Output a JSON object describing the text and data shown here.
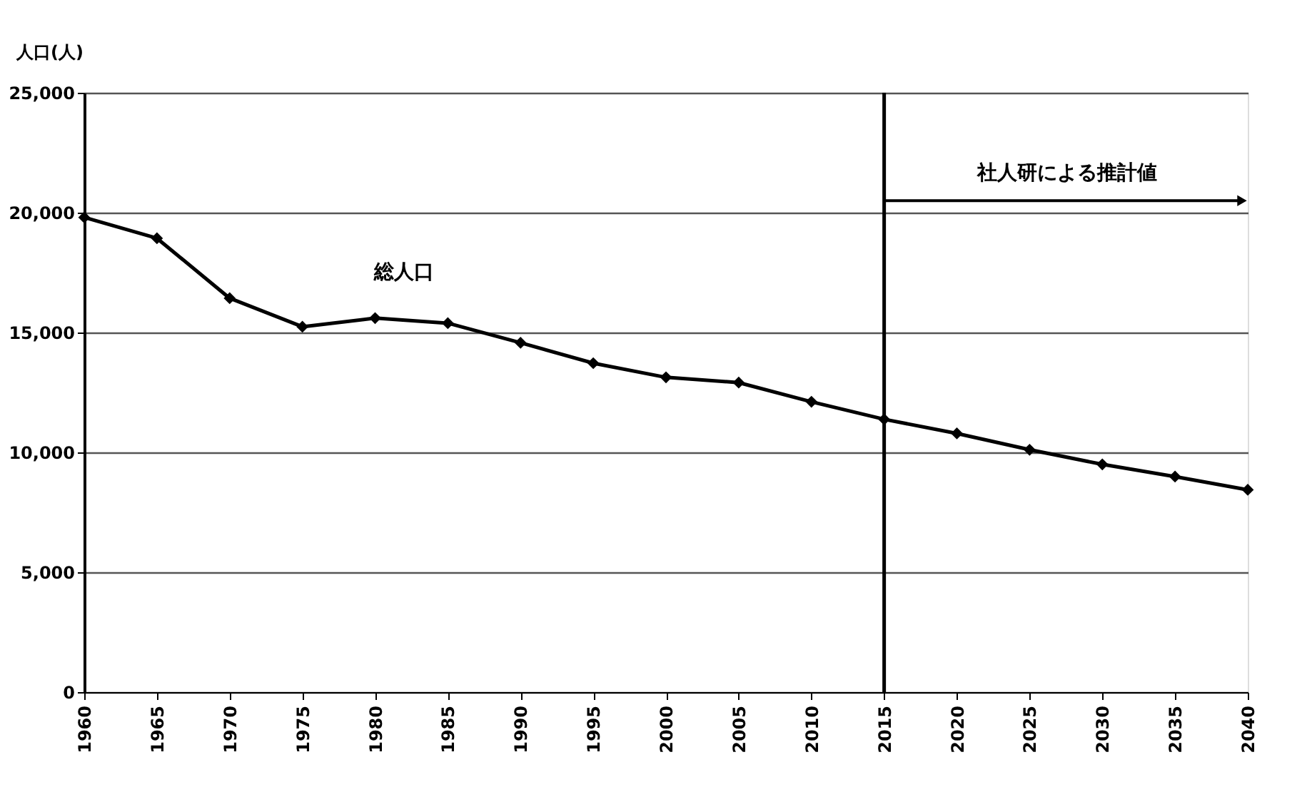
{
  "chart_data": {
    "type": "line",
    "ylabel": "人口(人)",
    "x": [
      1960,
      1965,
      1970,
      1975,
      1980,
      1985,
      1990,
      1995,
      2000,
      2005,
      2010,
      2015,
      2020,
      2025,
      2030,
      2035,
      2040
    ],
    "series": [
      {
        "color": "#000000",
        "values": [
          19800,
          18930,
          16430,
          15240,
          15600,
          15390,
          14570,
          13720,
          13130,
          12910,
          12110,
          11380,
          10790,
          10110,
          9500,
          8990,
          8440
        ]
      }
    ],
    "xlim": [
      1960,
      2040
    ],
    "xticks": [
      1960,
      1965,
      1970,
      1975,
      1980,
      1985,
      1990,
      1995,
      2000,
      2005,
      2010,
      2015,
      2020,
      2025,
      2030,
      2035,
      2040
    ],
    "ylim": [
      0,
      25000
    ],
    "yticks": [
      0,
      {
        "value": 5000,
        "label": "5,000"
      },
      {
        "value": 10000,
        "label": "10,000"
      },
      {
        "value": 15000,
        "label": "15,000"
      },
      {
        "value": 20000,
        "label": "20,000"
      },
      {
        "value": 25000,
        "label": "25,000"
      }
    ],
    "ref_lines": [
      {
        "axis": "x",
        "value": 2015,
        "label": null,
        "color": "#000000"
      }
    ],
    "annotations": [
      "総人口",
      "社人研による推計値"
    ],
    "grid": "y",
    "marker": "diamond",
    "line_style": "solid"
  }
}
